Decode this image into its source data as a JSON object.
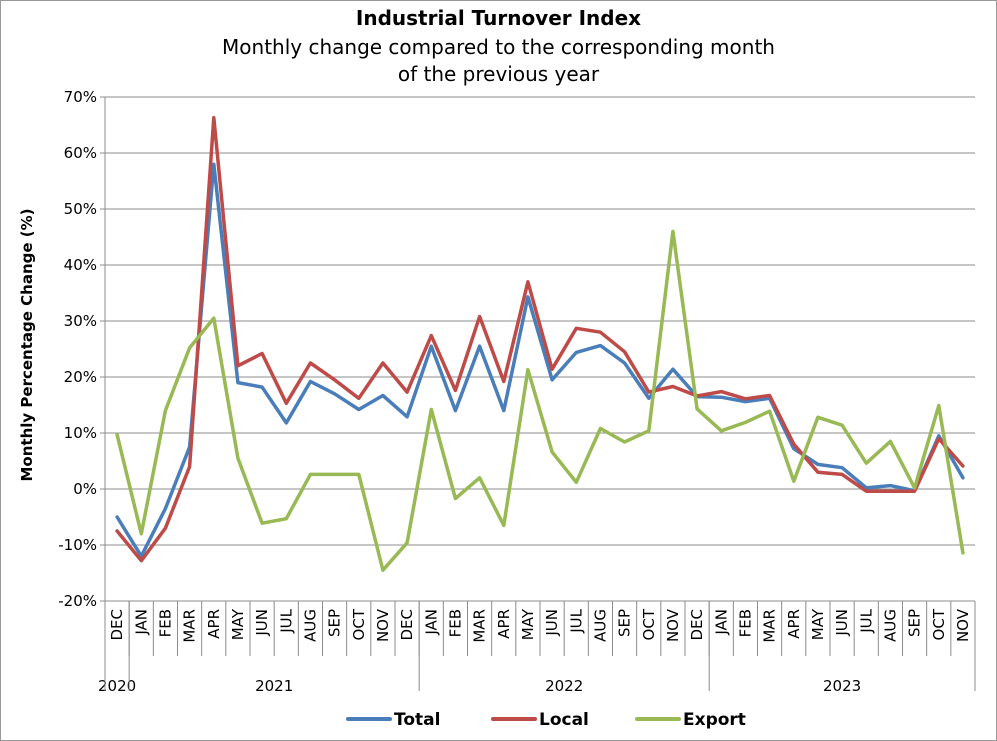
{
  "chart_data": {
    "type": "line",
    "title": "Industrial Turnover Index",
    "subtitle_lines": [
      "Monthly change compared to the corresponding month",
      "of the previous year"
    ],
    "ylabel": "Monthly Percentage Change (%)",
    "ylim": [
      -20,
      70
    ],
    "yticks": [
      "-20%",
      "-10%",
      "0%",
      "10%",
      "20%",
      "30%",
      "40%",
      "50%",
      "60%",
      "70%"
    ],
    "grid": true,
    "legend_position": "bottom",
    "categories": [
      "DEC",
      "JAN",
      "FEB",
      "MAR",
      "APR",
      "MAY",
      "JUN",
      "JUL",
      "AUG",
      "SEP",
      "OCT",
      "NOV",
      "DEC",
      "JAN",
      "FEB",
      "MAR",
      "APR",
      "MAY",
      "JUN",
      "JUL",
      "AUG",
      "SEP",
      "OCT",
      "NOV",
      "DEC",
      "JAN",
      "FEB",
      "MAR",
      "APR",
      "MAY",
      "JUN",
      "JUL",
      "AUG",
      "SEP",
      "OCT",
      "NOV"
    ],
    "year_groups": [
      {
        "label": "2020",
        "start": 0,
        "end": 0
      },
      {
        "label": "2021",
        "start": 1,
        "end": 12
      },
      {
        "label": "2022",
        "start": 13,
        "end": 24
      },
      {
        "label": "2023",
        "start": 25,
        "end": 35
      }
    ],
    "series": [
      {
        "name": "Total",
        "color": "#4a7ebb",
        "values": [
          -5,
          -12,
          -3.5,
          7.5,
          58,
          19,
          18.2,
          11.8,
          19.2,
          17,
          14.2,
          16.7,
          12.9,
          25.5,
          14,
          25.5,
          14,
          34.3,
          19.5,
          24.4,
          25.6,
          22.5,
          16.2,
          21.4,
          16.5,
          16.4,
          15.6,
          16.2,
          7.2,
          4.4,
          3.8,
          0.2,
          0.6,
          -0.3,
          9.5,
          2
        ]
      },
      {
        "name": "Local",
        "color": "#be4b48",
        "values": [
          -7.5,
          -12.8,
          -7,
          4,
          66.3,
          22,
          24.2,
          15.3,
          22.5,
          19.5,
          16.2,
          22.5,
          17.3,
          27.4,
          17.6,
          30.8,
          19.2,
          37,
          21.4,
          28.7,
          28,
          24.5,
          17.3,
          18.3,
          16.6,
          17.4,
          16.1,
          16.7,
          8,
          3,
          2.6,
          -0.4,
          -0.4,
          -0.4,
          9,
          4.1
        ]
      },
      {
        "name": "Export",
        "color": "#98b954",
        "values": [
          9.7,
          -8,
          14,
          25.2,
          30.5,
          5.5,
          -6.1,
          -5.3,
          2.6,
          2.6,
          2.6,
          -14.5,
          -9.6,
          14.2,
          -1.7,
          2,
          -6.5,
          21.3,
          6.6,
          1.2,
          10.8,
          8.4,
          10.4,
          46,
          14.3,
          10.4,
          11.9,
          13.9,
          1.4,
          12.8,
          11.4,
          4.6,
          8.5,
          0.2,
          14.9,
          -11.4
        ]
      }
    ]
  }
}
